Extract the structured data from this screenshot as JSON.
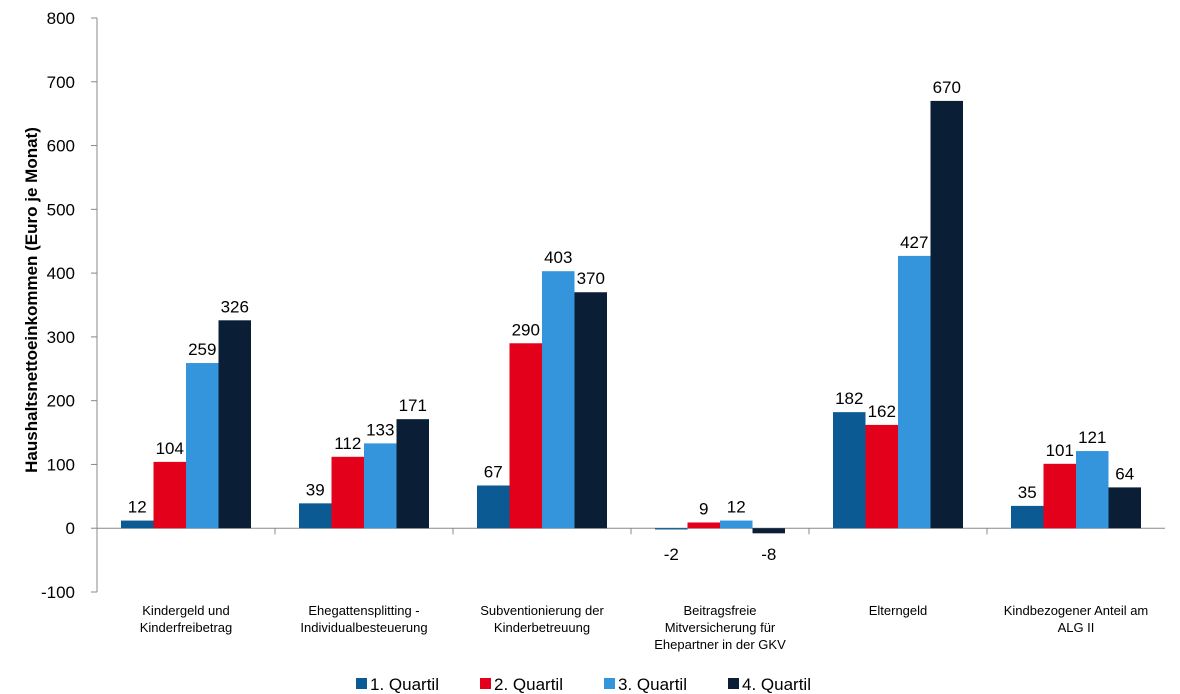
{
  "chart_data": {
    "type": "bar",
    "title": "",
    "xlabel": "",
    "ylabel": "Haushaltsnettoeinkommen (Euro je Monat)",
    "ylim": [
      -100,
      800
    ],
    "yticks": [
      -100,
      0,
      100,
      200,
      300,
      400,
      500,
      600,
      700,
      800
    ],
    "grid": false,
    "legend_position": "bottom",
    "categories": [
      [
        "Kindergeld und",
        "Kinderfreibetrag"
      ],
      [
        "Ehegattensplitting -",
        "Individualbesteuerung"
      ],
      [
        "Subventionierung der",
        "Kinderbetreuung"
      ],
      [
        "Beitragsfreie",
        "Mitversicherung für",
        "Ehepartner in der GKV"
      ],
      [
        "Elterngeld"
      ],
      [
        "Kindbezogener Anteil am",
        "ALG II"
      ]
    ],
    "series": [
      {
        "name": "1. Quartil",
        "color": "#0b5a93",
        "values": [
          12,
          39,
          67,
          -2,
          182,
          35
        ]
      },
      {
        "name": "2. Quartil",
        "color": "#e2001a",
        "values": [
          104,
          112,
          290,
          9,
          162,
          101
        ]
      },
      {
        "name": "3. Quartil",
        "color": "#3494dc",
        "values": [
          259,
          133,
          403,
          12,
          427,
          121
        ]
      },
      {
        "name": "4. Quartil",
        "color": "#0a1f36",
        "values": [
          326,
          171,
          370,
          -8,
          670,
          64
        ]
      }
    ]
  }
}
